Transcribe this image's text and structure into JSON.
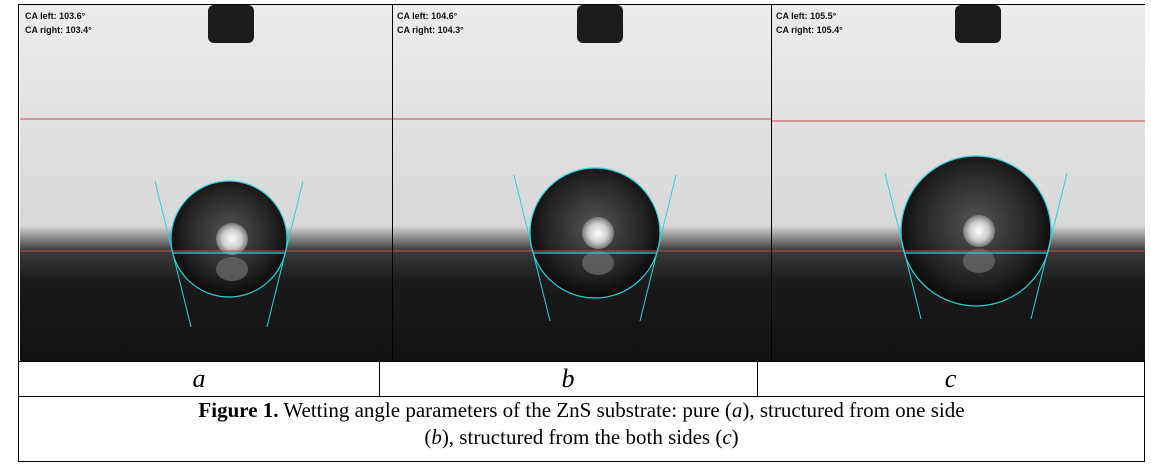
{
  "panels": [
    {
      "ca_left": "CA left: 103.6°",
      "ca_right": "CA right: 103.4°",
      "label": "a"
    },
    {
      "ca_left": "CA left: 104.6°",
      "ca_right": "CA right: 104.3°",
      "label": "b"
    },
    {
      "ca_left": "CA left: 105.5°",
      "ca_right": "CA right: 105.4°",
      "label": "c"
    }
  ],
  "caption": {
    "label": "Figure 1.",
    "parts": [
      " Wetting angle parameters of the ZnS substrate: pure (",
      "a",
      "), structured from one side",
      "(",
      "b",
      "), structured from the both sides (",
      "c",
      ")"
    ]
  }
}
